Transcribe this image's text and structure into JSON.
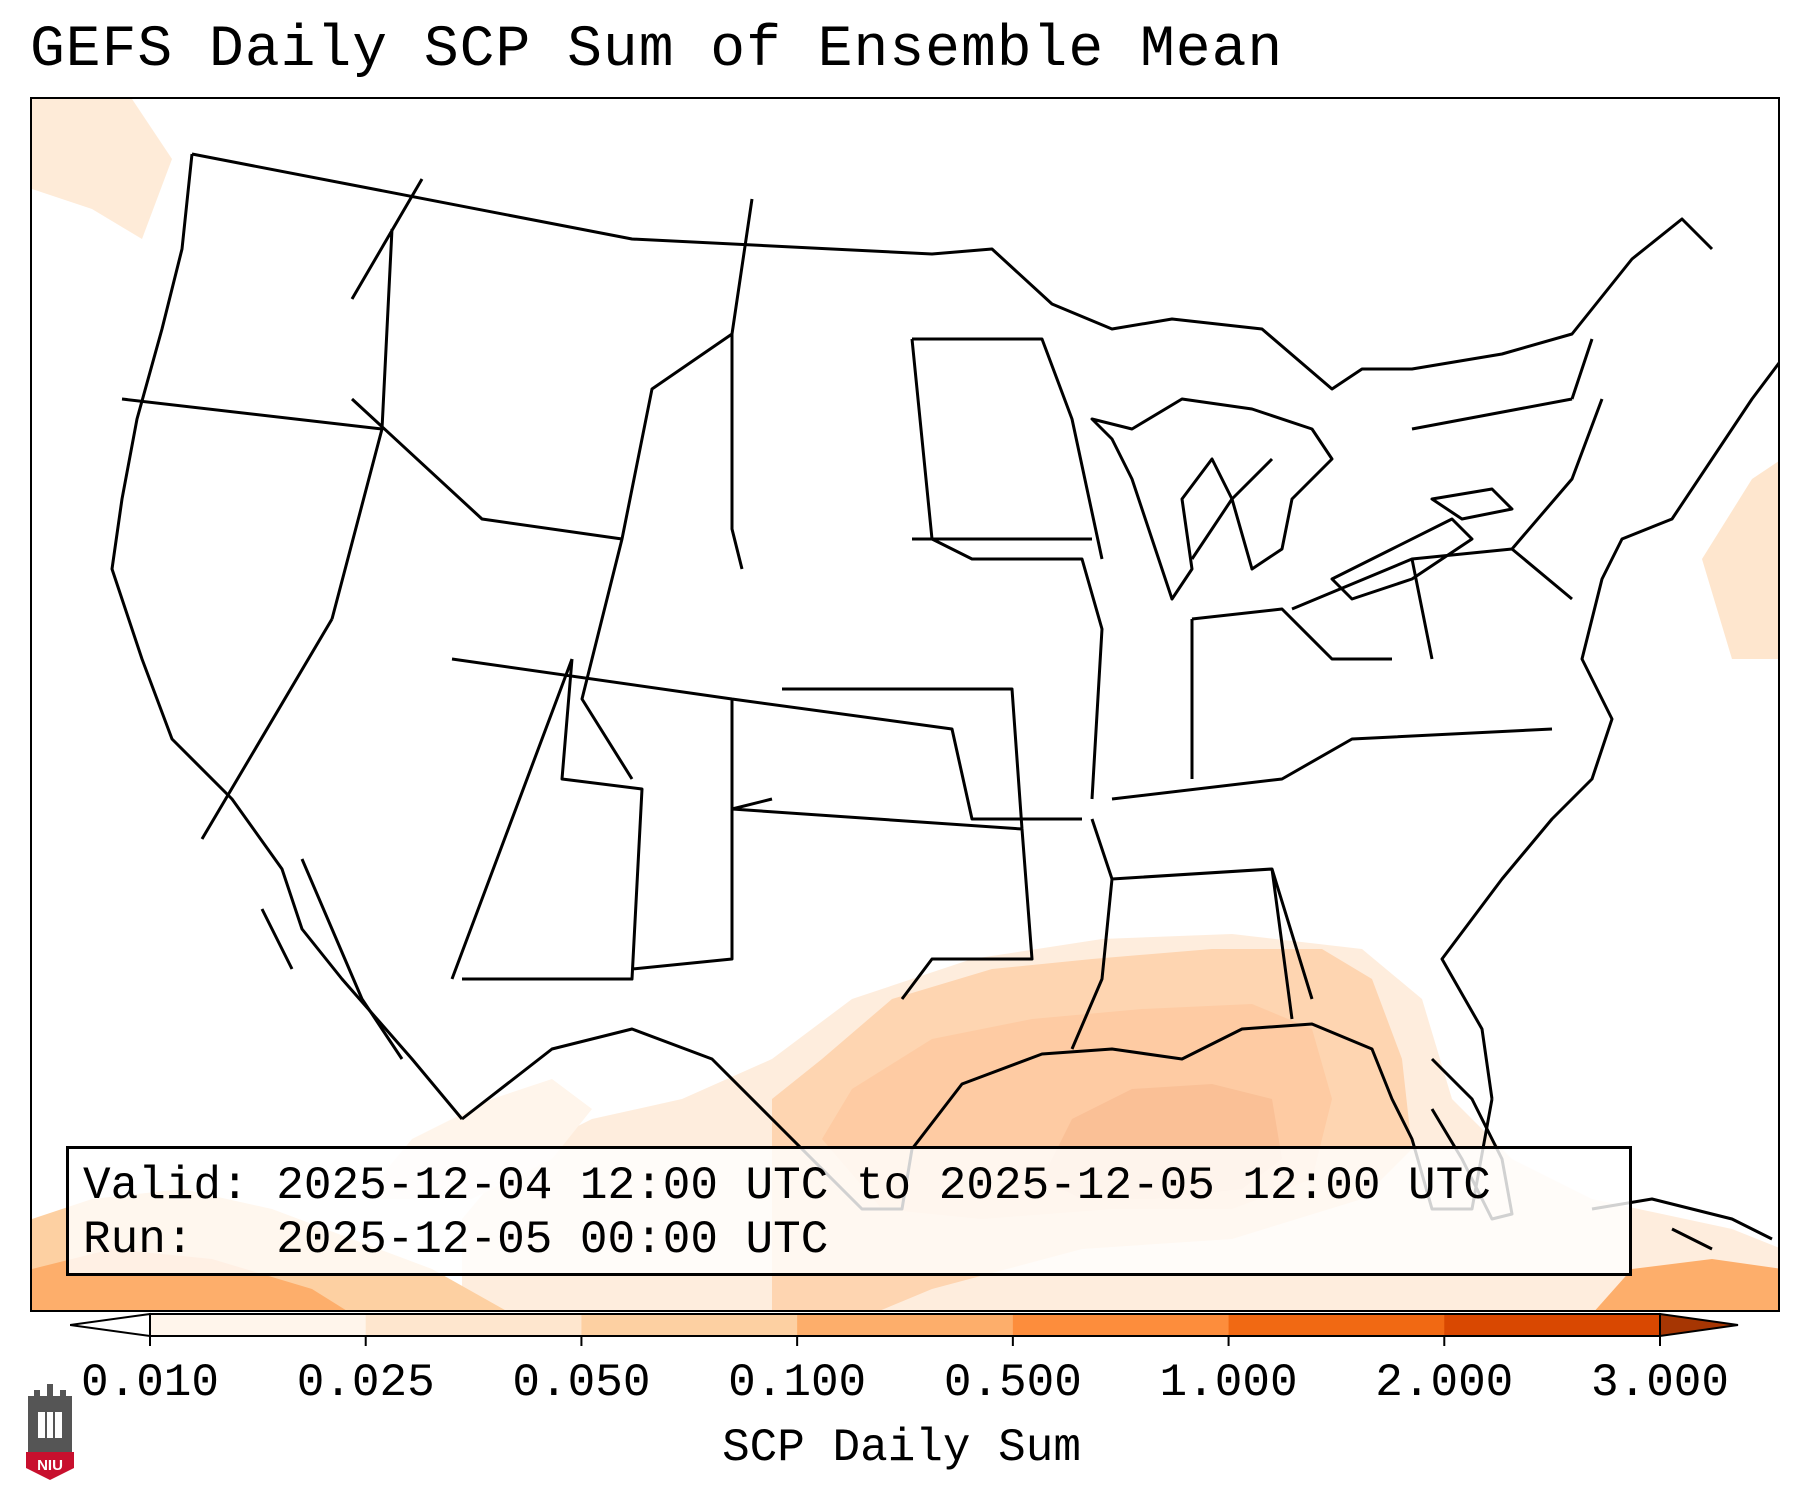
{
  "title": "GEFS Daily SCP Sum of Ensemble Mean",
  "info": {
    "valid_label": "Valid:",
    "valid_value": "2025-12-04 12:00 UTC to 2025-12-05 12:00 UTC",
    "run_label": "Run:",
    "run_value": "2025-12-05 00:00 UTC"
  },
  "colorbar": {
    "ticks": [
      "0.010",
      "0.025",
      "0.050",
      "0.100",
      "0.500",
      "1.000",
      "2.000",
      "3.000"
    ],
    "colors": [
      "#fff5eb",
      "#fee6ce",
      "#fdd0a2",
      "#fdae6b",
      "#fd8d3c",
      "#f16913",
      "#d94801",
      "#a63603"
    ],
    "under_color": "#ffffff",
    "over_color": "#a63603",
    "label": "SCP Daily Sum",
    "extend": "both"
  },
  "logo": {
    "text": "NIU",
    "color": "#c8102e"
  }
}
